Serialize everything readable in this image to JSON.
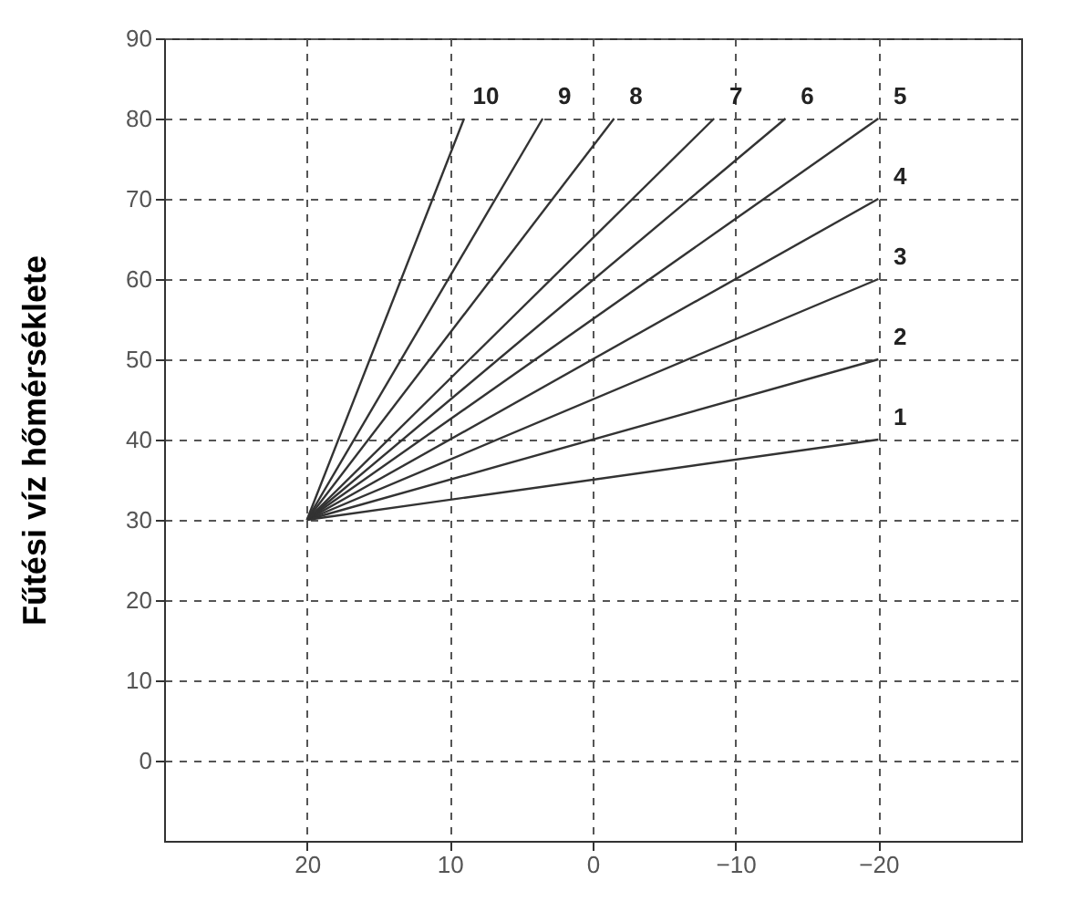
{
  "chart_data": {
    "type": "line",
    "ylabel": "Fűtési víz hőmérséklete",
    "xlim": [
      30,
      -30
    ],
    "xticks": [
      20,
      10,
      0,
      -10,
      -20
    ],
    "ylim": [
      -10,
      90
    ],
    "yticks": [
      0,
      10,
      20,
      30,
      40,
      50,
      60,
      70,
      80,
      90
    ],
    "grid": true,
    "marker": "none",
    "line_style": "solid",
    "series": [
      {
        "name": "1",
        "color": "#333333",
        "x": [
          20,
          -20
        ],
        "values": [
          30,
          40
        ]
      },
      {
        "name": "2",
        "color": "#333333",
        "x": [
          20,
          -20
        ],
        "values": [
          30,
          50
        ]
      },
      {
        "name": "3",
        "color": "#333333",
        "x": [
          20,
          -20
        ],
        "values": [
          30,
          60
        ]
      },
      {
        "name": "4",
        "color": "#333333",
        "x": [
          20,
          -20
        ],
        "values": [
          30,
          70
        ]
      },
      {
        "name": "5",
        "color": "#333333",
        "x": [
          20,
          -20
        ],
        "values": [
          30,
          80
        ]
      },
      {
        "name": "6",
        "color": "#333333",
        "x": [
          20,
          -13.5
        ],
        "values": [
          30,
          80
        ]
      },
      {
        "name": "7",
        "color": "#333333",
        "x": [
          20,
          -8.5
        ],
        "values": [
          30,
          80
        ]
      },
      {
        "name": "8",
        "color": "#333333",
        "x": [
          20,
          -1.5
        ],
        "values": [
          30,
          80
        ]
      },
      {
        "name": "9",
        "color": "#333333",
        "x": [
          20,
          3.5
        ],
        "values": [
          30,
          80
        ]
      },
      {
        "name": "10",
        "color": "#333333",
        "x": [
          20,
          9
        ],
        "values": [
          30,
          80
        ]
      }
    ]
  }
}
